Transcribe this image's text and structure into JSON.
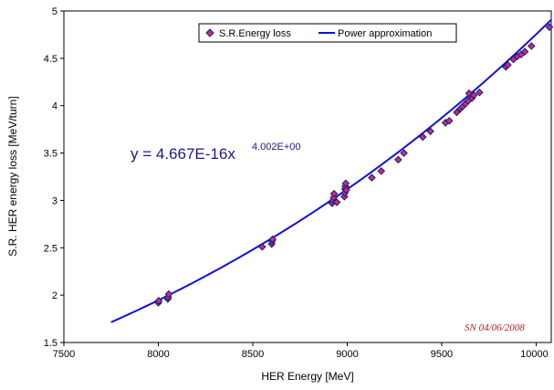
{
  "chart_data": {
    "type": "scatter",
    "xlabel": "HER Energy [MeV]",
    "ylabel": "S.R. HER energy loss [MeV/turn]",
    "xlim": [
      7500,
      10000
    ],
    "ylim": [
      1.5,
      5
    ],
    "x_ticks": [
      "7500",
      "8000",
      "8500",
      "9000",
      "9500",
      "10000"
    ],
    "y_ticks": [
      "1.5",
      "2",
      "2.5",
      "3",
      "3.5",
      "4",
      "4.5",
      "5"
    ],
    "grid": "off",
    "legend_position": "top-right",
    "equation": {
      "main": "y = 4.667E-16x",
      "exponent": "4.002E+00"
    },
    "signature": "SN 04/06/2008",
    "colors": {
      "marker_fill": "#c0307a",
      "marker_edge": "#1a1a80",
      "fit_line": "#1010e0"
    },
    "series": [
      {
        "name": "S.R.Energy loss",
        "kind": "scatter",
        "x": [
          8000,
          8002,
          8050,
          8052,
          8055,
          8550,
          8600,
          8602,
          8605,
          8920,
          8925,
          8928,
          8930,
          8945,
          8985,
          8987,
          8988,
          8990,
          8992,
          8995,
          9130,
          9180,
          9270,
          9300,
          9400,
          9440,
          9520,
          9540,
          9580,
          9600,
          9610,
          9625,
          9640,
          9645,
          9660,
          9670,
          9700,
          9840,
          9850,
          9880,
          9900,
          9920,
          9940,
          9975,
          10070
        ],
        "y": [
          1.92,
          1.94,
          1.96,
          1.98,
          2.01,
          2.51,
          2.54,
          2.57,
          2.59,
          2.97,
          3.0,
          3.03,
          3.07,
          2.98,
          3.04,
          3.08,
          3.12,
          3.15,
          3.18,
          3.11,
          3.24,
          3.31,
          3.43,
          3.5,
          3.67,
          3.73,
          3.82,
          3.84,
          3.93,
          3.97,
          3.99,
          4.02,
          4.05,
          4.13,
          4.08,
          4.11,
          4.14,
          4.41,
          4.43,
          4.49,
          4.52,
          4.54,
          4.57,
          4.63,
          4.83
        ]
      },
      {
        "name": "Power approximation",
        "kind": "line",
        "x_range": [
          7750,
          10080
        ],
        "coefficient": 4.667e-16,
        "exponent": 4.002
      }
    ]
  }
}
